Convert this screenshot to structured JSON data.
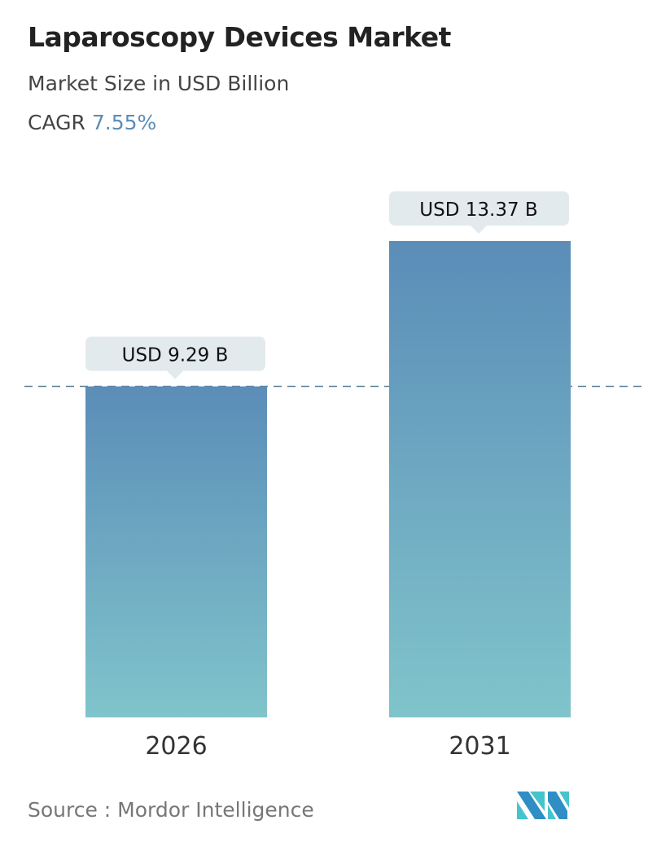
{
  "title": "Laparoscopy Devices Market",
  "subtitle": "Market Size in USD Billion",
  "cagr_label": "CAGR",
  "cagr_value": "7.55%",
  "source": "Source :  Mordor Intelligence",
  "colors": {
    "bar_top": "#5b8db8",
    "bar_bottom": "#80c4cb",
    "label_bg": "#e3eaed",
    "dash": "#5b8096",
    "cagr": "#5b8db8"
  },
  "chart_data": {
    "type": "bar",
    "categories": [
      "2026",
      "2031"
    ],
    "values": [
      9.29,
      13.37
    ],
    "data_labels": [
      "USD 9.29 B",
      "USD 13.37 B"
    ],
    "ylabel": "Market Size in USD Billion",
    "reference_line": 9.29,
    "grid": false
  }
}
